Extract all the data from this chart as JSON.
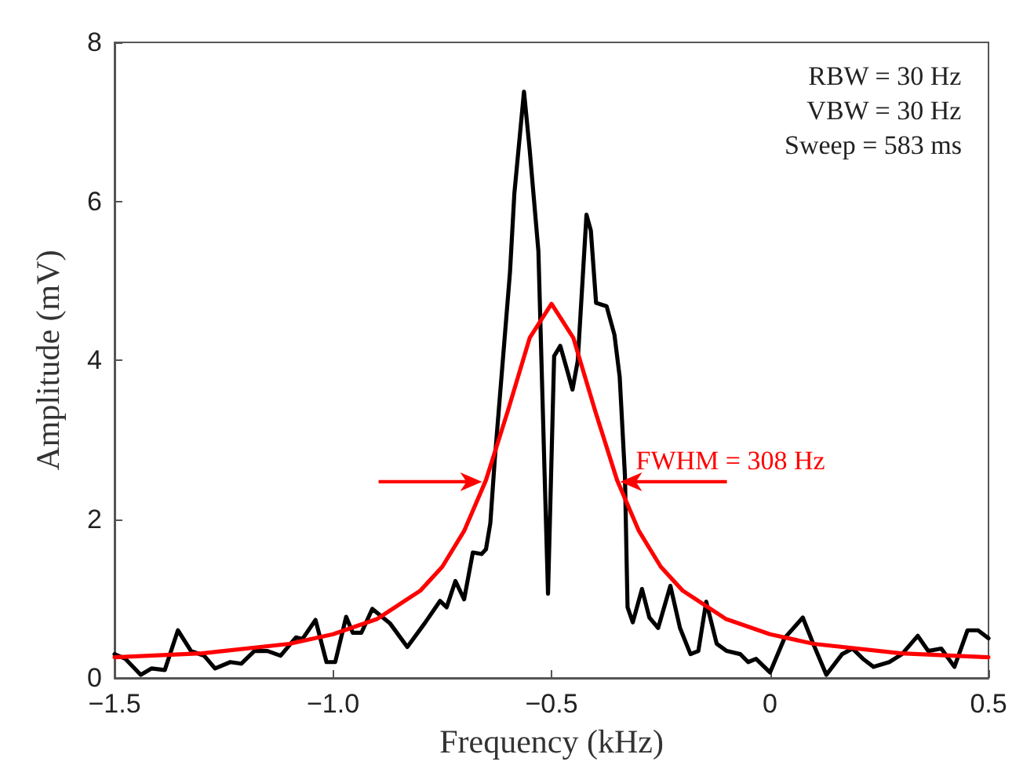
{
  "chart_data": {
    "type": "line",
    "xlabel": "Frequency (kHz)",
    "ylabel": "Amplitude (mV)",
    "xlim": [
      -1.5,
      0.5
    ],
    "ylim": [
      0,
      8
    ],
    "xticks": [
      {
        "value": -1.5,
        "label": "−1.5"
      },
      {
        "value": -1,
        "label": "−1.0"
      },
      {
        "value": -0.5,
        "label": "−0.5"
      },
      {
        "value": 0,
        "label": "0"
      },
      {
        "value": 0.5,
        "label": "0.5"
      }
    ],
    "yticks": [
      0,
      2,
      4,
      6,
      8
    ],
    "grid": false,
    "marker": "none",
    "line_style": "solid",
    "annotations": [
      "RBW = 30 Hz",
      "VBW = 30 Hz",
      "Sweep = 583 ms",
      {
        "text": "FWHM = 308 Hz",
        "x": -0.35,
        "y": 2.47
      }
    ],
    "series": [
      {
        "color": "#000000",
        "x": [
          -1.5,
          -1.475,
          -1.44,
          -1.415,
          -1.385,
          -1.355,
          -1.325,
          -1.295,
          -1.27,
          -1.235,
          -1.21,
          -1.18,
          -1.15,
          -1.12,
          -1.085,
          -1.07,
          -1.04,
          -1.015,
          -0.995,
          -0.97,
          -0.955,
          -0.935,
          -0.91,
          -0.87,
          -0.83,
          -0.79,
          -0.755,
          -0.74,
          -0.72,
          -0.7,
          -0.68,
          -0.66,
          -0.65,
          -0.64,
          -0.63,
          -0.595,
          -0.585,
          -0.563,
          -0.55,
          -0.53,
          -0.516,
          -0.508,
          -0.494,
          -0.48,
          -0.463,
          -0.452,
          -0.44,
          -0.42,
          -0.41,
          -0.398,
          -0.374,
          -0.356,
          -0.344,
          -0.332,
          -0.326,
          -0.314,
          -0.293,
          -0.276,
          -0.256,
          -0.228,
          -0.206,
          -0.182,
          -0.164,
          -0.146,
          -0.122,
          -0.099,
          -0.068,
          -0.05,
          -0.032,
          0.0,
          0.033,
          0.075,
          0.099,
          0.129,
          0.165,
          0.189,
          0.213,
          0.237,
          0.273,
          0.302,
          0.338,
          0.362,
          0.392,
          0.422,
          0.452,
          0.476,
          0.5
        ],
        "values": [
          0.3,
          0.24,
          0.04,
          0.12,
          0.1,
          0.6,
          0.34,
          0.28,
          0.12,
          0.2,
          0.18,
          0.34,
          0.34,
          0.28,
          0.51,
          0.49,
          0.73,
          0.2,
          0.2,
          0.77,
          0.57,
          0.57,
          0.87,
          0.69,
          0.39,
          0.69,
          0.97,
          0.89,
          1.22,
          0.99,
          1.58,
          1.56,
          1.62,
          1.95,
          2.74,
          5.11,
          6.1,
          7.38,
          6.65,
          5.37,
          2.6,
          1.06,
          4.05,
          4.18,
          3.85,
          3.63,
          3.99,
          5.83,
          5.63,
          4.72,
          4.68,
          4.32,
          3.79,
          2.55,
          0.89,
          0.7,
          1.12,
          0.76,
          0.63,
          1.16,
          0.63,
          0.3,
          0.34,
          0.96,
          0.43,
          0.34,
          0.3,
          0.2,
          0.24,
          0.07,
          0.5,
          0.76,
          0.43,
          0.04,
          0.3,
          0.37,
          0.24,
          0.14,
          0.2,
          0.3,
          0.53,
          0.34,
          0.37,
          0.14,
          0.6,
          0.6,
          0.5
        ]
      },
      {
        "color": "#ff0000",
        "x": [
          -1.5,
          -1.3,
          -1.1,
          -1.0,
          -0.9,
          -0.8,
          -0.75,
          -0.7,
          -0.65,
          -0.6,
          -0.55,
          -0.5,
          -0.45,
          -0.4,
          -0.35,
          -0.3,
          -0.25,
          -0.2,
          -0.1,
          0.0,
          0.1,
          0.3,
          0.5
        ],
        "values": [
          0.26,
          0.31,
          0.43,
          0.55,
          0.74,
          1.1,
          1.4,
          1.85,
          2.49,
          3.36,
          4.28,
          4.71,
          4.28,
          3.36,
          2.49,
          1.85,
          1.4,
          1.1,
          0.74,
          0.55,
          0.43,
          0.31,
          0.26
        ]
      }
    ]
  }
}
